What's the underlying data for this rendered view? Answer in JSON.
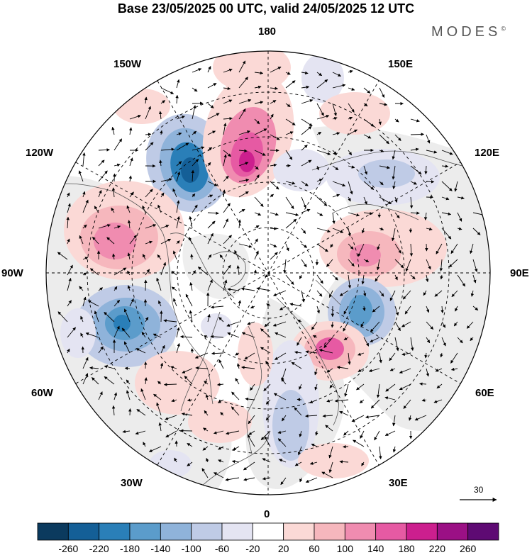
{
  "title": "Base 23/05/2025 00 UTC, valid 24/05/2025 12 UTC",
  "brand": "MODES",
  "brand_mark": "©",
  "longitude_labels": {
    "top": "180",
    "bottom": "0",
    "left": "90W",
    "right": "90E",
    "upper_left_1": "150W",
    "upper_left_2": "120W",
    "lower_left_1": "60W",
    "lower_left_2": "30W",
    "upper_right_1": "150E",
    "upper_right_2": "120E",
    "lower_right_1": "60E",
    "lower_right_2": "30E"
  },
  "vector_scale": {
    "label": "30"
  },
  "colorbar": {
    "colors": [
      "#0b3a5e",
      "#145f97",
      "#2a7fb8",
      "#5b9ccb",
      "#8fb3da",
      "#bfcbe6",
      "#e4e4f2",
      "#ffffff",
      "#fbd9d6",
      "#f6b7bd",
      "#f08cb0",
      "#e65aa3",
      "#cc1f8e",
      "#9b1085",
      "#5e0a73"
    ],
    "ticks": [
      "-260",
      "-220",
      "-180",
      "-140",
      "-100",
      "-60",
      "-20",
      "20",
      "60",
      "100",
      "140",
      "180",
      "220",
      "260"
    ]
  },
  "anomalies": [
    {
      "sign": "negative",
      "value": -260,
      "color": "#145f97",
      "location": "150W 65N"
    },
    {
      "sign": "positive",
      "value": 200,
      "color": "#cc1f8e",
      "location": "175W 65N"
    },
    {
      "sign": "positive",
      "value": 140,
      "color": "#e65aa3",
      "location": "105W 50N"
    },
    {
      "sign": "negative",
      "value": -180,
      "color": "#2a7fb8",
      "location": "65W 45N"
    },
    {
      "sign": "positive",
      "value": 140,
      "color": "#e65aa3",
      "location": "100E 60N"
    },
    {
      "sign": "negative",
      "value": -140,
      "color": "#5b9ccb",
      "location": "80E 55N"
    },
    {
      "sign": "positive",
      "value": 140,
      "color": "#e65aa3",
      "location": "30E 60N"
    },
    {
      "sign": "negative",
      "value": -60,
      "color": "#bfcbe6",
      "location": "130E 65N"
    },
    {
      "sign": "negative",
      "value": -60,
      "color": "#bfcbe6",
      "location": "10E 55N"
    }
  ]
}
